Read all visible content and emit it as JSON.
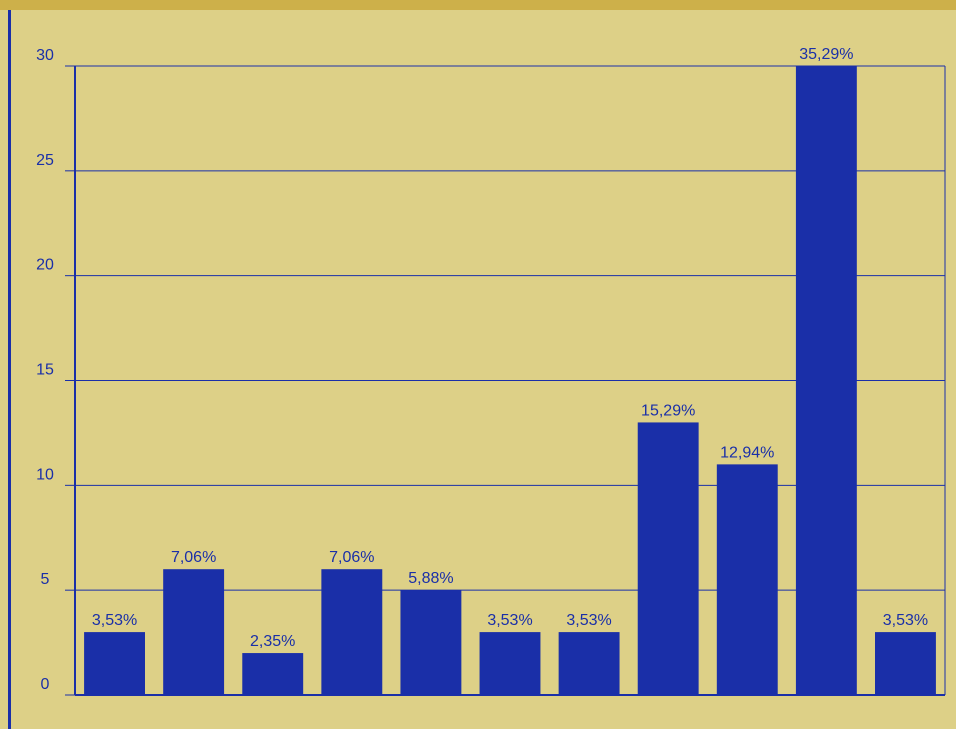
{
  "colors": {
    "background": "#ddd087",
    "top_strip": "#cdb04a",
    "bar": "#1a2fa8",
    "axis": "#1a2fa8",
    "grid": "#1a2fa8"
  },
  "chart_data": {
    "type": "bar",
    "title": "",
    "xlabel": "",
    "ylabel": "",
    "ylim": [
      0,
      30
    ],
    "yticks": [
      0,
      5,
      10,
      15,
      20,
      25,
      30
    ],
    "grid": true,
    "values": [
      3,
      6,
      2,
      6,
      5,
      3,
      3,
      13,
      11,
      30,
      3
    ],
    "data_labels": [
      "3,53%",
      "7,06%",
      "2,35%",
      "7,06%",
      "5,88%",
      "3,53%",
      "3,53%",
      "15,29%",
      "12,94%",
      "35,29%",
      "3,53%"
    ]
  }
}
